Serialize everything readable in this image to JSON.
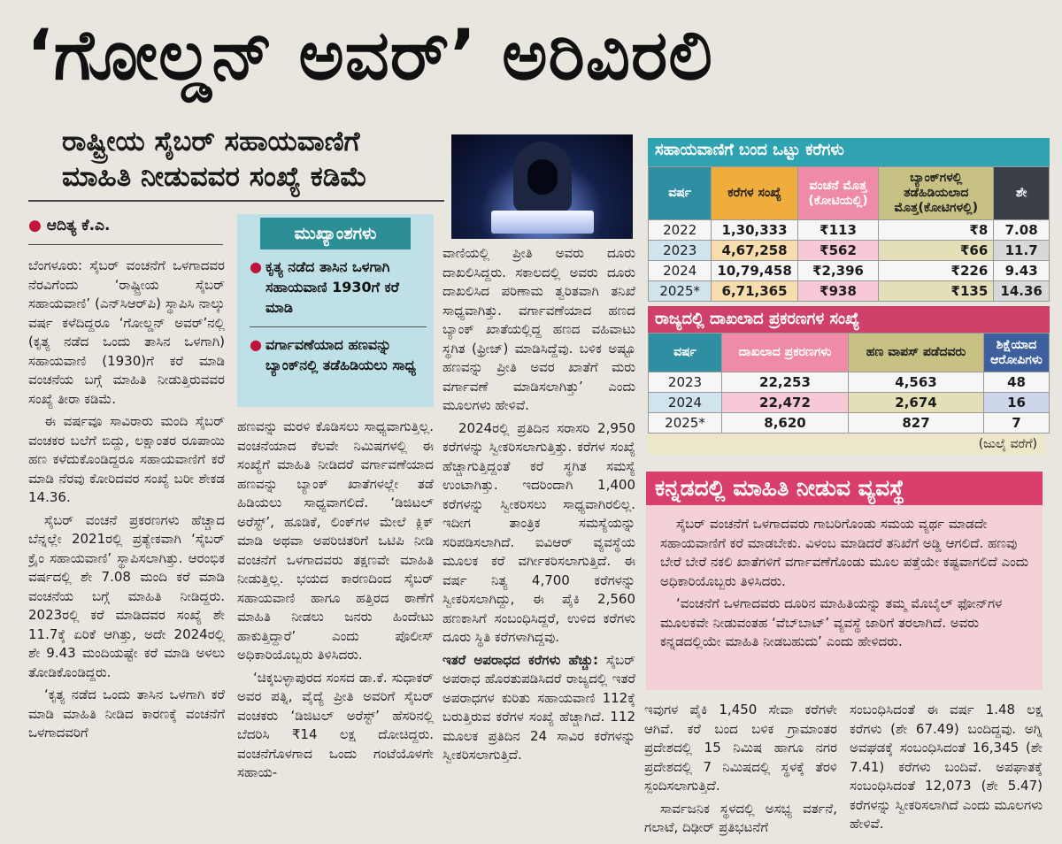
{
  "headline": "‘ಗೋಲ್ಡನ್ ಅವರ್’ ಅರಿವಿರಲಿ",
  "subheadline": {
    "line1": "ರಾಷ್ಟ್ರೀಯ ಸೈಬರ್ ಸಹಾಯವಾಣಿಗೆ",
    "line2": "ಮಾಹಿತಿ ನೀಡುವವರ ಸಂಖ್ಯೆ ಕಡಿಮೆ"
  },
  "byline": "ಆದಿತ್ಯ ಕೆ.ಎ.",
  "highlights": {
    "title": "ಮುಖ್ಯಾಂಶಗಳು",
    "items": [
      "ಕೃತ್ಯ ನಡೆದ ತಾಸಿನ ಒಳಗಾಗಿ ಸಹಾಯವಾಣಿ 1930ಗೆ ಕರೆ ಮಾಡಿ",
      "ವರ್ಗಾವಣೆಯಾದ ಹಣವನ್ನು ಬ್ಯಾಂಕ್‌ನಲ್ಲಿ ತಡೆಹಿಡಿಯಲು ಸಾಧ್ಯ"
    ]
  },
  "col1": [
    "ಬೆಂಗಳೂರು: ಸೈಬರ್ ವಂಚನೆಗೆ ಒಳಗಾದವರ ನೆರವಿಗೆಂದು ‘ರಾಷ್ಟ್ರೀಯ ಸೈಬರ್ ಸಹಾಯವಾಣಿ’ (ಎನ್‌ಸಿಆರ್‌ಪಿ) ಸ್ಥಾಪಿಸಿ ನಾಲ್ಕು ವರ್ಷ ಕಳೆದಿದ್ದರೂ ‘ಗೋಲ್ಡನ್ ಅವರ್’ನಲ್ಲಿ (ಕೃತ್ಯ ನಡೆದ ಒಂದು ತಾಸಿನ ಒಳಗಾಗಿ) ಸಹಾಯವಾಣಿ (1930)ಗೆ ಕರೆ ಮಾಡಿ ವಂಚನೆಯ ಬಗ್ಗೆ ಮಾಹಿತಿ ನೀಡುತ್ತಿರುವವರ ಸಂಖ್ಯೆ ತೀರಾ ಕಡಿಮೆ.",
    "ಈ ವರ್ಷವೂ ಸಾವಿರಾರು ಮಂದಿ ಸೈಬರ್ ವಂಚಕರ ಬಲೆಗೆ ಬಿದ್ದು, ಲಕ್ಷಾಂತರ ರೂಪಾಯಿ ಹಣ ಕಳೆದುಕೊಂಡಿದ್ದರೂ ಸಹಾಯವಾಣಿಗೆ ಕರೆ ಮಾಡಿ ನೆರವು ಕೋರಿದವರ ಸಂಖ್ಯೆ ಬರೀ ಶೇಕಡ 14.36.",
    "ಸೈಬರ್ ವಂಚನೆ ಪ್ರಕರಣಗಳು ಹೆಚ್ಚಾದ ಬೆನ್ನಲ್ಲೇ 2021ರಲ್ಲಿ ಪ್ರತ್ಯೇಕವಾಗಿ ‘ಸೈಬರ್ ಕ್ರೈಂ ಸಹಾಯವಾಣಿ’ ಸ್ಥಾಪಿಸಲಾಗಿತ್ತು. ಆರಂಭಿಕ ವರ್ಷದಲ್ಲಿ ಶೇ 7.08 ಮಂದಿ ಕರೆ ಮಾಡಿ ವಂಚನೆಯ ಬಗ್ಗೆ ಮಾಹಿತಿ ನೀಡಿದ್ದರು. 2023ರಲ್ಲಿ ಕರೆ ಮಾಡಿದವರ ಸಂಖ್ಯೆ ಶೇ 11.7ಕ್ಕೆ ಏರಿಕೆ ಆಗಿತ್ತು, ಅದೇ 2024ರಲ್ಲಿ ಶೇ 9.43 ಮಂದಿಯಷ್ಟೇ ಕರೆ ಮಾಡಿ ಅಳಲು ತೋಡಿಕೊಂಡಿದ್ದರು.",
    "‘ಕೃತ್ಯ ನಡೆದ ಒಂದು ತಾಸಿನ ಒಳಗಾಗಿ ಕರೆ ಮಾಡಿ ಮಾಹಿತಿ ನೀಡಿದ ಕಾರಣಕ್ಕೆ ವಂಚನೆಗೆ ಒಳಗಾದವರಿಗೆ"
  ],
  "col2": [
    "ಹಣವನ್ನು ಮರಳಿ ಕೊಡಿಸಲು ಸಾಧ್ಯವಾಗುತ್ತಿಲ್ಲ. ವಂಚನೆಯಾದ ಕೆಲವೇ ನಿಮಿಷಗಳಲ್ಲಿ ಈ ಸಂಖ್ಯೆಗೆ ಮಾಹಿತಿ ನೀಡಿದರೆ ವರ್ಗಾವಣೆಯಾದ ಹಣವನ್ನು ಬ್ಯಾಂಕ್ ಖಾತೆಗಳಲ್ಲೇ ತಡೆ ಹಿಡಿಯಲು ಸಾಧ್ಯವಾಗಲಿದೆ. ‘ಡಿಜಿಟಲ್ ಅರೆಸ್ಟ್’, ಹೂಡಿಕೆ, ಲಿಂಕ್‌ಗಳ ಮೇಲೆ ಕ್ಲಿಕ್ ಮಾಡಿ ಅಥವಾ ಅಪರಿಚಿತರಿಗೆ ಒಟಿಪಿ ನೀಡಿ ವಂಚನೆಗೆ ಒಳಗಾದವರು ತಕ್ಷಣವೇ ಮಾಹಿತಿ ನೀಡುತ್ತಿಲ್ಲ. ಭಯದ ಕಾರಣದಿಂದ ಸೈಬರ್ ಸಹಾಯವಾಣಿ ಹಾಗೂ ಹತ್ತಿರದ ಠಾಣೆಗೆ ಮಾಹಿತಿ ನೀಡಲು ಜನರು ಹಿಂದೇಟು ಹಾಕುತ್ತಿದ್ದಾರೆ’ ಎಂದು ಪೊಲೀಸ್ ಅಧಿಕಾರಿಯೊಬ್ಬರು ತಿಳಿಸಿದರು.",
    "‘ಚಿಕ್ಕಬಳ್ಳಾಪುರದ ಸಂಸದ ಡಾ.ಕೆ. ಸುಧಾಕರ್ ಅವರ ಪತ್ನಿ, ವೈದ್ಯೆ ಪ್ರೀತಿ ಅವರಿಗೆ ಸೈಬರ್ ವಂಚಕರು ‘ಡಿಜಿಟಲ್ ಅರೆಸ್ಟ್’ ಹೆಸರಿನಲ್ಲಿ ಬೆದರಿಸಿ ₹14 ಲಕ್ಷ ದೋಚಿದ್ದರು. ವಂಚನೆಗೊಳಗಾದ ಒಂದು ಗಂಟೆಯೊಳಗೇ ಸಹಾಯ-"
  ],
  "col3": [
    "ವಾಣಿಯಲ್ಲಿ ಪ್ರೀತಿ ಅವರು ದೂರು ದಾಖಲಿಸಿದ್ದರು. ಸಕಾಲದಲ್ಲಿ ಅವರು ದೂರು ದಾಖಲಿಸಿದ ಪರಿಣಾಮ ತ್ವರಿತವಾಗಿ ತನಿಖೆ ಸಾಧ್ಯವಾಗಿತ್ತು. ವರ್ಗಾವಣೆಯಾದ ಹಣದ ಬ್ಯಾಂಕ್ ಖಾತೆಯಲ್ಲಿದ್ದ ಹಣದ ವಹಿವಾಟು ಸ್ಥಗಿತ (ಫ್ರೀಜ್) ಮಾಡಿಸಿದ್ದೆವು. ಬಳಿಕ ಅಷ್ಟೂ ಹಣವನ್ನು ಪ್ರೀತಿ ಅವರ ಖಾತೆಗೆ ಮರು ವರ್ಗಾವಣೆ ಮಾಡಿಸಲಾಗಿತ್ತು’ ಎಂದು ಮೂಲಗಳು ಹೇಳಿವೆ.",
    "2024ರಲ್ಲಿ ಪ್ರತಿದಿನ ಸರಾಸರಿ 2,950 ಕರೆಗಳನ್ನು ಸ್ವೀಕರಿಸಲಾಗುತ್ತಿತ್ತು. ಕರೆಗಳ ಸಂಖ್ಯೆ ಹೆಚ್ಚಾಗುತ್ತಿದ್ದಂತೆ ಕರೆ ಸ್ಥಗಿತ ಸಮಸ್ಯೆ ಉಂಟಾಗಿತ್ತು. ಇದರಿಂದಾಗಿ 1,400 ಕರೆಗಳನ್ನು ಸ್ವೀಕರಿಸಲು ಸಾಧ್ಯವಾಗಿರಲಿಲ್ಲ. ಇದೀಗ ತಾಂತ್ರಿಕ ಸಮಸ್ಯೆಯನ್ನು ಸರಿಪಡಿಸಲಾಗಿದೆ. ಐವಿಆರ್ ವ್ಯವಸ್ಥೆಯ ಮೂಲಕ ಕರೆ ವರ್ಗೀಕರಿಸಲಾಗುತ್ತಿದೆ. ಈ ವರ್ಷ ನಿತ್ಯ 4,700 ಕರೆಗಳನ್ನು ಸ್ವೀಕರಿಸಲಾಗಿದ್ದು, ಈ ಪೈಕಿ 2,560 ಹಣಕಾಸಿಗೆ ಸಂಬಂಧಿಸಿದ್ದರೆ, ಉಳಿದ ಕರೆಗಳು ದೂರು ಸ್ಥಿತಿ ಕರೆಗಳಾಗಿದ್ದವು."
  ],
  "col3_subhead": "ಇತರೆ ಅಪರಾಧದ ಕರೆಗಳು ಹೆಚ್ಚು:",
  "col3_after": "ಸೈಬರ್ ಅಪರಾಧ ಹೊರತುಪಡಿಸಿದರೆ ರಾಜ್ಯದಲ್ಲಿ ಇತರೆ ಅಪರಾಧಗಳ ಕುರಿತು ಸಹಾಯವಾಣಿ 112ಕ್ಕೆ ಬರುತ್ತಿರುವ ಕರೆಗಳ ಸಂಖ್ಯೆ ಹೆಚ್ಚಾಗಿದೆ. 112 ಮೂಲಕ ಪ್ರತಿದಿನ 24 ಸಾವಿರ ಕರೆಗಳನ್ನು ಸ್ವೀಕರಿಸಲಾಗುತ್ತಿದೆ.",
  "table1": {
    "title": "ಸಹಾಯವಾಣಿಗೆ ಬಂದ ಒಟ್ಟು ಕರೆಗಳು",
    "headers": [
      "ವರ್ಷ",
      "ಕರೆಗಳ ಸಂಖ್ಯೆ",
      "ವಂಚನೆ ಮೊತ್ತ (ಕೋಟಿಯಲ್ಲಿ)",
      "ಬ್ಯಾಂಕ್‌ಗಳಲ್ಲಿ ತಡೆಹಿಡಿಯಲಾದ ಮೊತ್ತ(ಕೋಟಿಗಳಲ್ಲಿ)",
      "ಶೇ"
    ],
    "rows": [
      [
        "2022",
        "1,30,333",
        "₹113",
        "₹8",
        "7.08"
      ],
      [
        "2023",
        "4,67,258",
        "₹562",
        "₹66",
        "11.7"
      ],
      [
        "2024",
        "10,79,458",
        "₹2,396",
        "₹226",
        "9.43"
      ],
      [
        "2025*",
        "6,71,365",
        "₹938",
        "₹135",
        "14.36"
      ]
    ]
  },
  "table2": {
    "title": "ರಾಜ್ಯದಲ್ಲಿ ದಾಖಲಾದ ಪ್ರಕರಣಗಳ ಸಂಖ್ಯೆ",
    "headers": [
      "ವರ್ಷ",
      "ದಾಖಲಾದ ಪ್ರಕರಣಗಳು",
      "ಹಣ ವಾಪಸ್ ಪಡೆದವರು",
      "ಶಿಕ್ಷೆಯಾದ ಆರೋಪಿಗಳು"
    ],
    "rows": [
      [
        "2023",
        "22,253",
        "4,563",
        "48"
      ],
      [
        "2024",
        "22,472",
        "2,674",
        "16"
      ],
      [
        "2025*",
        "8,620",
        "827",
        "7"
      ]
    ],
    "note": "(ಜುಲೈ ವರೆಗೆ)"
  },
  "kannada_box": {
    "title": "ಕನ್ನಡದಲ್ಲಿ ಮಾಹಿತಿ ನೀಡುವ ವ್ಯವಸ್ಥೆ",
    "paras": [
      "ಸೈಬರ್ ವಂಚನೆಗೆ ಒಳಗಾದವರು ಗಾಬರಿಗೊಂಡು ಸಮಯ ವ್ಯರ್ಥ ಮಾಡದೇ ಸಹಾಯವಾಣಿಗೆ ಕರೆ ಮಾಡಬೇಕು. ವಿಳಂಬ ಮಾಡಿದರೆ ತನಿಖೆಗೆ ಅಡ್ಡಿ ಆಗಲಿದೆ. ಹಣವು ಬೇರೆ ಬೇರೆ ನಕಲಿ ಖಾತೆಗಳಿಗೆ ವರ್ಗಾವಣೆಗೊಂಡು ಮೂಲ ಪತ್ತೆಯೇ ಕಷ್ಟವಾಗಲಿದೆ ಎಂದು ಅಧಿಕಾರಿಯೊಬ್ಬರು ತಿಳಿಸಿದರು.",
      "‘ವಂಚನೆಗೆ ಒಳಗಾದವರು ದೂರಿನ ಮಾಹಿತಿಯನ್ನು ತಮ್ಮ ಮೊಬೈಲ್ ಫೋನ್‌ಗಳ ಮೂಲಕವೇ ನೀಡುವಂತಹ ‘ವೆಬ್‌ಬಾಟ್’ ವ್ಯವಸ್ಥೆ ಜಾರಿಗೆ ತರಲಾಗಿದೆ. ಅವರು ಕನ್ನಡದಲ್ಲಿಯೇ ಮಾಹಿತಿ ನೀಡಬಹುದು’ ಎಂದು ಹೇಳಿದರು."
    ]
  },
  "col4": "ಇವುಗಳ ಪೈಕಿ 1,450 ಸೇವಾ ಕರೆಗಳೇ ಆಗಿವೆ. ಕರೆ ಬಂದ ಬಳಿಕ ಗ್ರಾಮಾಂತರ ಪ್ರದೇಶದಲ್ಲಿ 15 ನಿಮಿಷ ಹಾಗೂ ನಗರ ಪ್ರದೇಶದಲ್ಲಿ 7 ನಿಮಿಷದಲ್ಲಿ ಸ್ಥಳಕ್ಕೆ ತೆರಳಿ ಸ್ಪಂದಿಸಲಾಗುತ್ತಿದೆ.",
  "col4b": "ಸಾರ್ವಜನಿಕ ಸ್ಥಳದಲ್ಲಿ ಅಸಭ್ಯ ವರ್ತನೆ, ಗಲಾಟೆ, ದಿಢೀರ್ ಪ್ರತಿಭಟನೆಗೆ",
  "col5": "ಸಂಬಂಧಿಸಿದಂತೆ ಈ ವರ್ಷ 1.48 ಲಕ್ಷ ಕರೆಗಳು (ಶೇ 67.49) ಬಂದಿದ್ದವು. ಅಗ್ನಿ ಅವಘಡಕ್ಕೆ ಸಂಬಂಧಿಸಿದಂತೆ 16,345 (ಶೇ 7.41) ಕರೆಗಳು ಬಂದಿವೆ. ಅಪಘಾತಕ್ಕೆ ಸಂಬಂಧಿಸಿದಂತೆ 12,073 (ಶೇ 5.47) ಕರೆಗಳನ್ನು ಸ್ವೀಕರಿಸಲಾಗಿದೆ ಎಂದು ಮೂಲಗಳು ಹೇಳಿವೆ."
}
